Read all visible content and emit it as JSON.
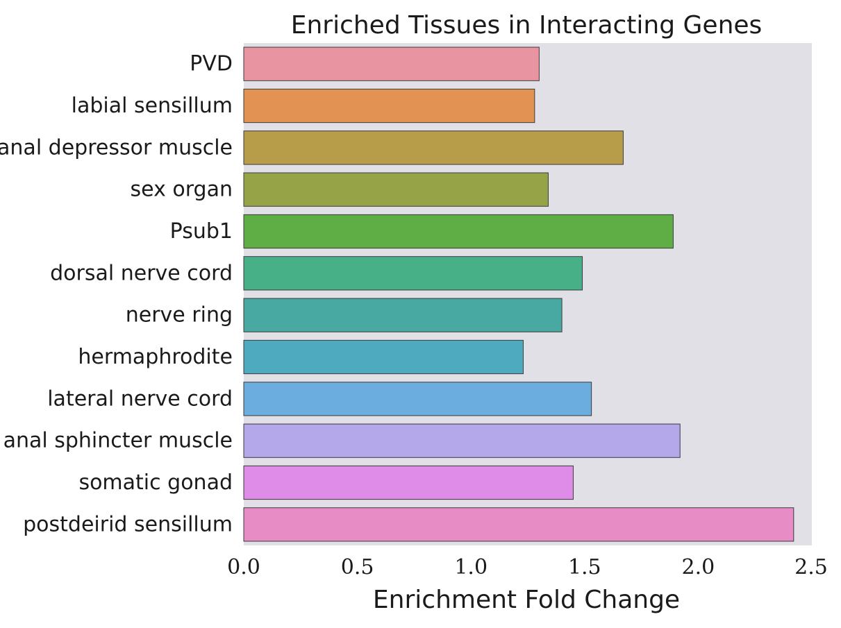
{
  "chart_data": {
    "type": "bar",
    "orientation": "horizontal",
    "title": "Enriched Tissues in Interacting Genes",
    "xlabel": "Enrichment Fold Change",
    "ylabel": "",
    "xlim": [
      0,
      2.5
    ],
    "xticks": [
      "0.0",
      "0.5",
      "1.0",
      "1.5",
      "2.0",
      "2.5"
    ],
    "grid": false,
    "background": "#e0e0e6",
    "categories": [
      "PVD",
      "labial sensillum",
      "anal depressor muscle",
      "sex organ",
      "Psub1",
      "dorsal nerve cord",
      "nerve ring",
      "hermaphrodite",
      "lateral nerve cord",
      "anal sphincter muscle",
      "somatic gonad",
      "postdeirid sensillum"
    ],
    "values": [
      1.3,
      1.28,
      1.67,
      1.34,
      1.89,
      1.49,
      1.4,
      1.23,
      1.53,
      1.92,
      1.45,
      2.42
    ],
    "colors": [
      "#e994a1",
      "#e29354",
      "#b79c4a",
      "#96a346",
      "#5eae45",
      "#48b087",
      "#48a9a2",
      "#4eabbf",
      "#6badde",
      "#b4a7ea",
      "#de8ce8",
      "#e88cc5"
    ]
  }
}
